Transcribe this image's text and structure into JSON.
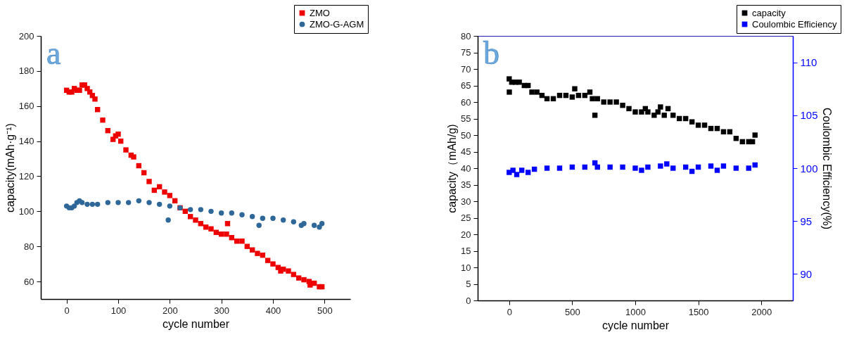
{
  "chart_data": [
    {
      "type": "scatter",
      "xlabel": "cycle number",
      "ylabel": "capacity(mAh·g⁻¹)",
      "annotations": [
        "a"
      ],
      "legend": "top right",
      "xlim": [
        -50,
        550
      ],
      "xticks": [
        0,
        100,
        200,
        300,
        400,
        500
      ],
      "ylim": [
        50,
        200
      ],
      "yticks": [
        60,
        80,
        100,
        120,
        140,
        160,
        180,
        200
      ],
      "series": [
        {
          "name": "ZMO",
          "color": "#ee0000",
          "marker": "square",
          "x": [
            0,
            5,
            10,
            15,
            20,
            25,
            30,
            35,
            40,
            45,
            50,
            55,
            60,
            70,
            80,
            90,
            95,
            100,
            105,
            115,
            125,
            130,
            140,
            150,
            160,
            170,
            180,
            190,
            200,
            210,
            220,
            230,
            240,
            250,
            260,
            270,
            280,
            290,
            300,
            310,
            312,
            320,
            330,
            340,
            350,
            360,
            370,
            380,
            390,
            400,
            410,
            415,
            420,
            430,
            440,
            450,
            460,
            470,
            472,
            480,
            490,
            495
          ],
          "values": [
            169,
            168,
            168,
            170,
            169,
            169,
            172,
            172,
            170,
            168,
            166,
            164,
            158,
            152,
            146,
            141,
            143,
            144,
            140,
            135,
            132,
            131,
            126,
            122,
            117,
            112,
            114,
            111,
            109,
            106,
            102,
            100,
            97,
            95,
            93,
            91,
            90,
            88,
            87,
            87,
            93,
            85,
            83,
            83,
            80,
            78,
            76,
            75,
            72,
            70,
            68,
            66,
            67,
            66,
            64,
            62,
            61,
            60,
            58,
            59,
            57,
            57
          ]
        },
        {
          "name": "ZMO-G-AGM",
          "color": "#2f6799",
          "marker": "circle",
          "x": [
            0,
            5,
            10,
            15,
            20,
            25,
            30,
            40,
            50,
            60,
            80,
            100,
            120,
            140,
            160,
            180,
            197,
            200,
            220,
            240,
            260,
            280,
            300,
            320,
            340,
            360,
            373,
            380,
            400,
            420,
            440,
            455,
            460,
            480,
            490,
            495
          ],
          "values": [
            103,
            102,
            102,
            103,
            105,
            106,
            105,
            104,
            104,
            104,
            105,
            105,
            105,
            106,
            105,
            104,
            95,
            103,
            102,
            101,
            101,
            100,
            99,
            99,
            98,
            97,
            92,
            96,
            96,
            95,
            94,
            92,
            93,
            92,
            91,
            93
          ]
        }
      ]
    },
    {
      "type": "scatter",
      "xlabel": "cycle number",
      "ylabel": "capacity（mAh/g)",
      "y2label": "Coulombic Efficiency(%)",
      "annotations": [
        "b"
      ],
      "legend": "top right",
      "xlim": [
        -250,
        2250
      ],
      "xticks": [
        0,
        500,
        1000,
        1500,
        2000
      ],
      "ylim": [
        0,
        80
      ],
      "yticks": [
        0,
        5,
        10,
        15,
        20,
        25,
        30,
        35,
        40,
        45,
        50,
        55,
        60,
        65,
        70,
        75,
        80
      ],
      "y2lim": [
        87.5,
        112.5
      ],
      "y2ticks": [
        90,
        95,
        100,
        105,
        110
      ],
      "series": [
        {
          "name": "capacity",
          "color": "#000000",
          "marker": "square",
          "x": [
            0,
            1,
            20,
            50,
            80,
            120,
            150,
            180,
            220,
            260,
            300,
            350,
            400,
            450,
            500,
            520,
            550,
            600,
            640,
            660,
            680,
            700,
            750,
            800,
            850,
            900,
            950,
            1000,
            1050,
            1080,
            1100,
            1150,
            1180,
            1200,
            1230,
            1260,
            1300,
            1350,
            1400,
            1450,
            1500,
            1550,
            1600,
            1650,
            1700,
            1750,
            1800,
            1850,
            1900,
            1930,
            1950
          ],
          "values": [
            67,
            63,
            66,
            66,
            66,
            65,
            65,
            63,
            63,
            62,
            61,
            61,
            62,
            62,
            61.5,
            64,
            62,
            62,
            63,
            61,
            56,
            61,
            60,
            60,
            60,
            59,
            58,
            57,
            57,
            58,
            57,
            56,
            57,
            58.5,
            56,
            58,
            56,
            55,
            55,
            54,
            53,
            53,
            52,
            52,
            51,
            51,
            49,
            48,
            48,
            48,
            50
          ]
        },
        {
          "name": "Coulombic Efficiency",
          "color": "#0000ff",
          "marker": "square",
          "axis": "y2",
          "x": [
            0,
            30,
            60,
            100,
            150,
            200,
            300,
            400,
            500,
            600,
            680,
            700,
            800,
            900,
            1000,
            1050,
            1100,
            1200,
            1250,
            1300,
            1400,
            1450,
            1500,
            1600,
            1650,
            1700,
            1800,
            1900,
            1950
          ],
          "values": [
            99.6,
            99.8,
            99.4,
            99.8,
            99.6,
            99.9,
            100,
            100,
            100.1,
            100.1,
            100.5,
            100.1,
            100.1,
            100.1,
            100,
            99.8,
            100.1,
            100.2,
            100.4,
            100,
            100.1,
            99.7,
            100.1,
            100.2,
            99.8,
            100.2,
            100,
            100,
            100.3
          ]
        }
      ]
    }
  ]
}
